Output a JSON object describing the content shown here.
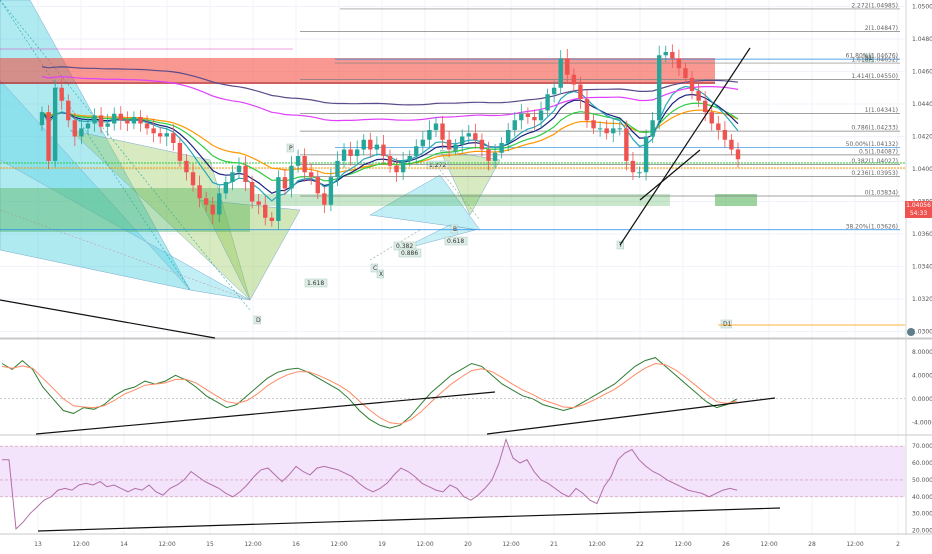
{
  "colors": {
    "up": "#26a69a",
    "down": "#ef5350",
    "ema_orange": "#ff9800",
    "ema_green": "#2ecc40",
    "ema_navy": "#1a237e",
    "ema_magenta": "#e040fb",
    "ema_purple": "#5c4b8a",
    "ema_teal": "#26a6b8",
    "rsi_band": "#f3e3fb",
    "rsi_line": "#b26ea8",
    "macd_line": "#2e7d32",
    "signal_line": "#ff8a65",
    "fib_line": "#808080",
    "res_zone": "#f44336",
    "sup_zone": "#4caf50",
    "pattern_cyan": "#4dd0e1",
    "pattern_green": "#8bc34a"
  },
  "main_axis": {
    "ticks": [
      "1.05000",
      "1.04800",
      "1.04600",
      "1.04400",
      "1.04200",
      "1.04000",
      "1.03800",
      "1.03600",
      "1.03400",
      "1.03200",
      "1.03000"
    ],
    "ticks_values": [
      1.05,
      1.048,
      1.046,
      1.044,
      1.042,
      1.04,
      1.038,
      1.036,
      1.034,
      1.032,
      1.03
    ],
    "price_label": "1.04056",
    "countdown_label": "54:33"
  },
  "macd_axis": {
    "ticks": [
      "8.0000",
      "4.0000",
      "0.0000",
      "-4.0000"
    ],
    "ticks_values": [
      8,
      4,
      0,
      -4
    ]
  },
  "rsi_axis": {
    "ticks": [
      "70.0000",
      "60.0000",
      "50.0000",
      "40.0000",
      "30.0000",
      "20.0000"
    ],
    "ticks_values": [
      70,
      60,
      50,
      40,
      30,
      20
    ]
  },
  "time_axis": [
    "13",
    "12:00",
    "14",
    "12:00",
    "15",
    "12:00",
    "16",
    "12:00",
    "19",
    "12:00",
    "20",
    "12:00",
    "21",
    "12:00",
    "22",
    "12:00",
    "26",
    "12:00",
    "28",
    "12:00",
    "2"
  ],
  "fib_levels": [
    {
      "label": "2.272(1.04985)",
      "value": 1.04985
    },
    {
      "label": "2(1.04847)",
      "value": 1.04847
    },
    {
      "label": "61.80%(1.04676)",
      "value": 1.04676
    },
    {
      "label": "1.618(1.04652)",
      "value": 1.04652
    },
    {
      "label": "1.414(1.04550)",
      "value": 1.0455
    },
    {
      "label": "1(1.04341)",
      "value": 1.04341
    },
    {
      "label": "0.786(1.04233)",
      "value": 1.04233
    },
    {
      "label": "50.00%(1.04132)",
      "value": 1.04132
    },
    {
      "label": "0.5(1.04087)",
      "value": 1.04087
    },
    {
      "label": "0.382(1.04027)",
      "value": 1.04027
    },
    {
      "label": "0.236(1.03953)",
      "value": 1.03953
    },
    {
      "label": "0(1.03834)",
      "value": 1.03834
    },
    {
      "label": "38.20%(1.03626)",
      "value": 1.03626
    }
  ],
  "pattern_labels": [
    "0.382",
    "0.618",
    "1.272",
    "0.886",
    "1.618",
    "X",
    "A",
    "B",
    "C",
    "D",
    "T",
    "P",
    "D1",
    "b1"
  ],
  "watermark": "TradingView",
  "chart_data": [
    {
      "type": "candlestick",
      "title": "",
      "ylim": [
        1.0296,
        1.0504
      ],
      "series": [
        {
          "values_close": [
            1.0435,
            1.0405,
            1.045,
            1.0442,
            1.043,
            1.042,
            1.0425,
            1.0428,
            1.0433,
            1.0426,
            1.0428,
            1.0434,
            1.043,
            1.0428,
            1.0432,
            1.0428,
            1.0425,
            1.0422,
            1.042,
            1.0422,
            1.0416,
            1.0405,
            1.0398,
            1.039,
            1.0382,
            1.0378,
            1.0372,
            1.0385,
            1.0392,
            1.0398,
            1.0402,
            1.0392,
            1.038,
            1.0378,
            1.037,
            1.0368,
            1.0395,
            1.0388,
            1.0402,
            1.0408,
            1.0398,
            1.0395,
            1.0385,
            1.0378,
            1.0395,
            1.0405,
            1.0412,
            1.0408,
            1.0412,
            1.0418,
            1.0412,
            1.0415,
            1.0408,
            1.0402,
            1.0398,
            1.0405,
            1.0408,
            1.0414,
            1.0418,
            1.0424,
            1.0428,
            1.0418,
            1.0412,
            1.0415,
            1.042,
            1.0422,
            1.0418,
            1.0412,
            1.0405,
            1.041,
            1.0416,
            1.0424,
            1.043,
            1.0434,
            1.0432,
            1.043,
            1.0436,
            1.0446,
            1.045,
            1.0468,
            1.0458,
            1.0452,
            1.0443,
            1.043,
            1.0425,
            1.0425,
            1.0422,
            1.0425,
            1.0425,
            1.0405,
            1.0398,
            1.0398,
            1.042,
            1.043,
            1.047,
            1.0472,
            1.0468,
            1.0462,
            1.0456,
            1.0448,
            1.0442,
            1.0435,
            1.0428,
            1.0424,
            1.0418,
            1.0412,
            1.0406
          ]
        }
      ]
    },
    {
      "type": "line",
      "title": "",
      "ylim": [
        -6,
        10
      ],
      "series": [
        {
          "name": "",
          "values": [
            6,
            5,
            6.5,
            5,
            2,
            0,
            -2,
            -2.5,
            -1.5,
            -1.8,
            -1,
            0.5,
            1.5,
            2,
            3,
            2.5,
            3,
            4,
            3.2,
            2,
            0.5,
            -0.5,
            -1.5,
            -1,
            0.5,
            2,
            3.5,
            4.5,
            5,
            5.2,
            4.5,
            3.5,
            2.5,
            1.5,
            0,
            -2,
            -3.5,
            -4.5,
            -5,
            -4.5,
            -3,
            -1,
            1,
            2.5,
            4,
            5,
            6,
            5.5,
            4,
            2.5,
            1.5,
            0.5,
            0,
            -1,
            -1.5,
            -2,
            -1.5,
            -0.5,
            0.5,
            1.5,
            2.5,
            4,
            5.5,
            6.5,
            7,
            5.5,
            4,
            2.5,
            1,
            -0.5,
            -1.5,
            -1,
            0
          ]
        },
        {
          "name": "",
          "values": [
            5.5,
            5.2,
            5.6,
            5.2,
            3.5,
            1.8,
            0,
            -1.2,
            -1.4,
            -1.5,
            -1.2,
            -0.3,
            0.8,
            1.5,
            2.3,
            2.5,
            2.7,
            3.3,
            3.3,
            2.7,
            1.6,
            0.5,
            -0.5,
            -0.8,
            -0.3,
            0.8,
            2.2,
            3.3,
            4.1,
            4.6,
            4.6,
            4,
            3.2,
            2.3,
            1.2,
            -0.4,
            -1.9,
            -3.2,
            -4.1,
            -4.3,
            -3.6,
            -2.3,
            -0.6,
            1,
            2.5,
            3.7,
            4.8,
            5.1,
            4.6,
            3.6,
            2.5,
            1.5,
            0.7,
            -0.2,
            -0.8,
            -1.4,
            -1.5,
            -1,
            -0.2,
            0.7,
            1.6,
            2.8,
            4.1,
            5.2,
            6,
            5.8,
            4.9,
            3.6,
            2.2,
            0.8,
            -0.5,
            -0.8,
            -0.4
          ]
        }
      ]
    },
    {
      "type": "line",
      "title": "",
      "ylim": [
        18,
        76
      ],
      "band": [
        40,
        70
      ],
      "series": [
        {
          "name": "",
          "values": [
            62,
            62,
            21,
            25,
            30,
            34,
            38,
            40,
            44,
            45,
            44,
            47,
            48,
            47,
            49,
            46,
            47,
            45,
            43,
            45,
            44,
            47,
            43,
            41,
            45,
            47,
            50,
            55,
            52,
            49,
            47,
            45,
            42,
            40,
            43,
            47,
            52,
            56,
            57,
            53,
            49,
            53,
            58,
            55,
            53,
            57,
            58,
            57,
            56,
            54,
            52,
            48,
            45,
            43,
            45,
            48,
            53,
            57,
            55,
            52,
            48,
            46,
            44,
            43,
            47,
            45,
            40,
            38,
            41,
            45,
            50,
            60,
            74,
            63,
            60,
            62,
            55,
            50,
            48,
            45,
            42,
            40,
            45,
            42,
            38,
            36,
            46,
            52,
            62,
            66,
            68,
            62,
            58,
            55,
            53,
            50,
            48,
            46,
            44,
            43,
            42,
            40,
            42,
            44,
            45,
            44
          ]
        }
      ]
    }
  ]
}
